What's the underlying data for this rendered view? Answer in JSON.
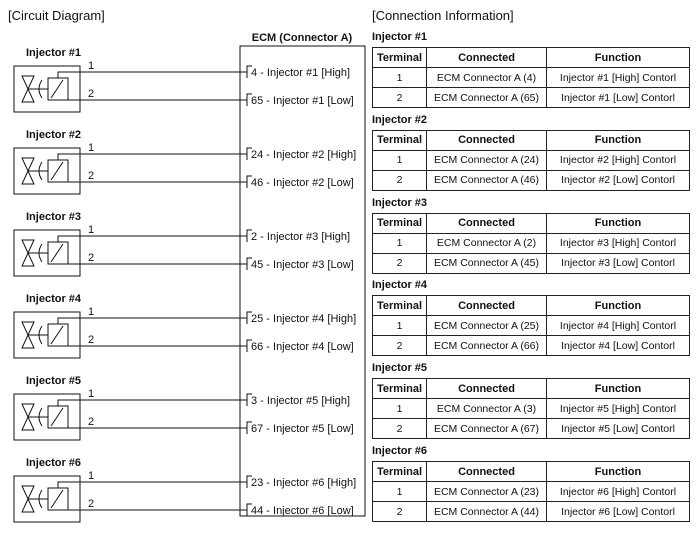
{
  "circuit_title": "[Circuit Diagram]",
  "connection_title": "[Connection Information]",
  "ecm_label": "ECM (Connector A)",
  "table_headers": [
    "Terminal",
    "Connected",
    "Function"
  ],
  "injectors": [
    {
      "name": "Injector #1",
      "pins": [
        {
          "t": "1",
          "ecm": "4",
          "ecm_label": "4 - Injector #1 [High]",
          "connected": "ECM Connector A (4)",
          "function": "Injector #1 [High] Contorl"
        },
        {
          "t": "2",
          "ecm": "65",
          "ecm_label": "65 - Injector #1 [Low]",
          "connected": "ECM Connector A (65)",
          "function": "Injector #1 [Low] Contorl"
        }
      ]
    },
    {
      "name": "Injector #2",
      "pins": [
        {
          "t": "1",
          "ecm_label": "24 - Injector #2 [High]",
          "connected": "ECM Connector A (24)",
          "function": "Injector #2 [High] Contorl"
        },
        {
          "t": "2",
          "ecm_label": "46 - Injector #2 [Low]",
          "connected": "ECM Connector A (46)",
          "function": "Injector #2 [Low] Contorl"
        }
      ]
    },
    {
      "name": "Injector #3",
      "pins": [
        {
          "t": "1",
          "ecm_label": "2 - Injector #3 [High]",
          "connected": "ECM Connector A (2)",
          "function": "Injector #3 [High] Contorl"
        },
        {
          "t": "2",
          "ecm_label": "45 - Injector #3 [Low]",
          "connected": "ECM Connector A (45)",
          "function": "Injector #3 [Low] Contorl"
        }
      ]
    },
    {
      "name": "Injector #4",
      "pins": [
        {
          "t": "1",
          "ecm_label": "25 - Injector #4 [High]",
          "connected": "ECM Connector A (25)",
          "function": "Injector #4 [High] Contorl"
        },
        {
          "t": "2",
          "ecm_label": "66 - Injector #4 [Low]",
          "connected": "ECM Connector A (66)",
          "function": "Injector #4 [Low] Contorl"
        }
      ]
    },
    {
      "name": "Injector #5",
      "pins": [
        {
          "t": "1",
          "ecm_label": "3 - Injector #5 [High]",
          "connected": "ECM Connector A (3)",
          "function": "Injector #5 [High] Contorl"
        },
        {
          "t": "2",
          "ecm_label": "67 - Injector #5 [Low]",
          "connected": "ECM Connector A (67)",
          "function": "Injector #5 [Low] Contorl"
        }
      ]
    },
    {
      "name": "Injector #6",
      "pins": [
        {
          "t": "1",
          "ecm_label": "23 - Injector #6 [High]",
          "connected": "ECM Connector A (23)",
          "function": "Injector #6 [High] Contorl"
        },
        {
          "t": "2",
          "ecm_label": "44 - Injector #6 [Low]",
          "connected": "ECM Connector A (44)",
          "function": "Injector #6 [Low] Contorl"
        }
      ]
    }
  ]
}
